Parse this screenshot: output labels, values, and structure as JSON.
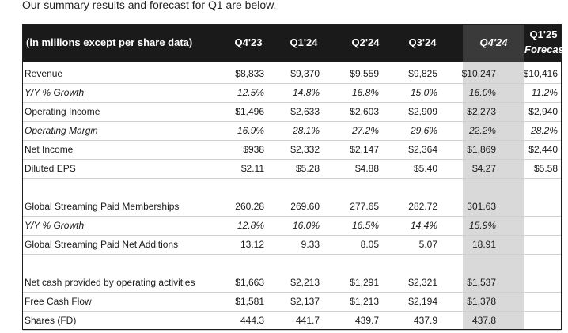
{
  "intro_text": "Our summary results and forecast for Q1 are below.",
  "table": {
    "header_label": "(in millions except per share data)",
    "columns": [
      "Q4'23",
      "Q1'24",
      "Q2'24",
      "Q3'24",
      "Q4'24"
    ],
    "forecast_col": {
      "line1": "Q1'25",
      "line2": "Forecast"
    },
    "rows": [
      {
        "label": "Revenue",
        "values": [
          "$8,833",
          "$9,370",
          "$9,559",
          "$9,825",
          "$10,247",
          "$10,416"
        ]
      },
      {
        "label": "Y/Y % Growth",
        "values": [
          "12.5%",
          "14.8%",
          "16.8%",
          "15.0%",
          "16.0%",
          "11.2%"
        ]
      },
      {
        "label": "Operating Income",
        "values": [
          "$1,496",
          "$2,633",
          "$2,603",
          "$2,909",
          "$2,273",
          "$2,940"
        ]
      },
      {
        "label": "Operating Margin",
        "values": [
          "16.9%",
          "28.1%",
          "27.2%",
          "29.6%",
          "22.2%",
          "28.2%"
        ]
      },
      {
        "label": "Net Income",
        "values": [
          "$938",
          "$2,332",
          "$2,147",
          "$2,364",
          "$1,869",
          "$2,440"
        ]
      },
      {
        "label": "Diluted EPS",
        "values": [
          "$2.11",
          "$5.28",
          "$4.88",
          "$5.40",
          "$4.27",
          "$5.58"
        ]
      },
      {
        "label": "Global Streaming Paid Memberships",
        "values": [
          "260.28",
          "269.60",
          "277.65",
          "282.72",
          "301.63",
          ""
        ]
      },
      {
        "label": "Y/Y % Growth",
        "values": [
          "12.8%",
          "16.0%",
          "16.5%",
          "14.4%",
          "15.9%",
          ""
        ]
      },
      {
        "label": "Global Streaming Paid Net Additions",
        "values": [
          "13.12",
          "9.33",
          "8.05",
          "5.07",
          "18.91",
          ""
        ]
      },
      {
        "label": "Net cash provided by operating activities",
        "values": [
          "$1,663",
          "$2,213",
          "$1,291",
          "$2,321",
          "$1,537",
          ""
        ]
      },
      {
        "label": "Free Cash Flow",
        "values": [
          "$1,581",
          "$2,137",
          "$1,213",
          "$2,194",
          "$1,378",
          ""
        ]
      },
      {
        "label": "Shares (FD)",
        "values": [
          "444.3",
          "441.7",
          "439.7",
          "437.9",
          "437.8",
          ""
        ]
      }
    ]
  }
}
